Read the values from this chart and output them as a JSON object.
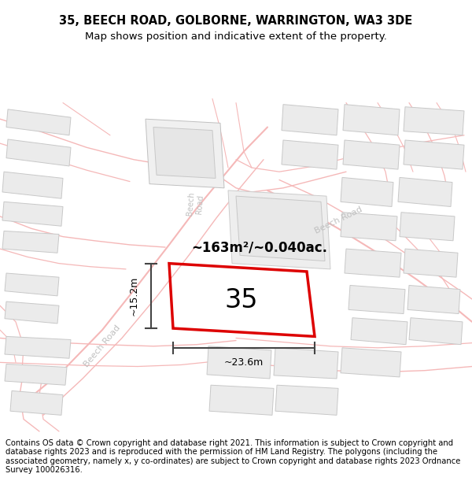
{
  "title_line1": "35, BEECH ROAD, GOLBORNE, WARRINGTON, WA3 3DE",
  "title_line2": "Map shows position and indicative extent of the property.",
  "footer_text": "Contains OS data © Crown copyright and database right 2021. This information is subject to Crown copyright and database rights 2023 and is reproduced with the permission of HM Land Registry. The polygons (including the associated geometry, namely x, y co-ordinates) are subject to Crown copyright and database rights 2023 Ordnance Survey 100026316.",
  "map_bg": "#ffffff",
  "road_color": "#f5b8b8",
  "building_fill": "#ebebeb",
  "building_edge": "#c8c8c8",
  "parcel_fill": "#f0f0f0",
  "parcel_color": "#dd0000",
  "parcel_label": "35",
  "area_label": "~163m²/~0.040ac.",
  "dim_h_label": "~15.2m",
  "dim_w_label": "~23.6m",
  "dim_color": "#444444",
  "road_label_color": "#c0c0c0",
  "title_fontsize": 10.5,
  "subtitle_fontsize": 9.5,
  "footer_fontsize": 7.2
}
